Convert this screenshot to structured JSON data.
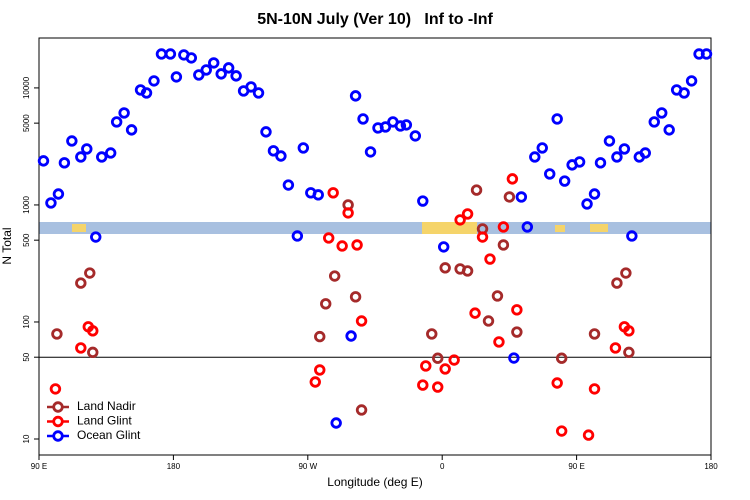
{
  "chart_data": {
    "type": "scatter",
    "title": "5N-10N July (Ver 10)   Inf to -Inf",
    "xlabel": "Longitude (deg E)",
    "ylabel": "N Total",
    "log_y": true,
    "xlim": [
      90,
      540
    ],
    "ylim": [
      7.3,
      26700
    ],
    "xticks": [
      {
        "value": 90,
        "label": "90 E"
      },
      180,
      {
        "value": 270,
        "label": "90 W"
      },
      {
        "value": 360,
        "label": "0"
      },
      {
        "value": 450,
        "label": "90 E"
      },
      {
        "value": 540,
        "label": "180"
      }
    ],
    "yticks": [
      10,
      50,
      100,
      500,
      1000,
      5000,
      10000
    ],
    "hline": 50,
    "legend": "lower left",
    "series": [
      {
        "name": "Land Nadir",
        "color": "#a52a2a",
        "x": [
          102,
          118,
          124,
          126,
          278,
          282,
          288,
          297,
          302,
          306,
          353,
          357,
          362,
          372,
          377,
          383,
          387,
          391,
          397,
          401,
          405,
          410,
          440,
          462,
          477,
          483,
          485
        ],
        "values": [
          79,
          215,
          262,
          55,
          75,
          143,
          247,
          1000,
          164,
          17.7,
          79,
          49,
          290,
          284,
          273,
          1340,
          624,
          102,
          167,
          455,
          1170,
          82,
          49,
          79,
          215,
          262,
          55
        ]
      },
      {
        "name": "Land Glint",
        "color": "#ff0000",
        "x": [
          101,
          118,
          123,
          126,
          275,
          278,
          284,
          287,
          293,
          297,
          303,
          306,
          347,
          349,
          357,
          362,
          368,
          372,
          377,
          382,
          387,
          392,
          398,
          401,
          407,
          410,
          437,
          440,
          458,
          462,
          476,
          482,
          485
        ],
        "values": [
          26.8,
          60,
          91,
          84,
          30.7,
          38.9,
          522,
          1270,
          446,
          855,
          455,
          102,
          28.9,
          42.1,
          27.8,
          39.7,
          47.3,
          745,
          838,
          119,
          532,
          345,
          67.5,
          649,
          1670,
          127,
          30.1,
          11.7,
          10.8,
          26.8,
          60,
          91,
          84
        ]
      },
      {
        "name": "Ocean Glint",
        "color": "#0000ff",
        "x": [
          93,
          98,
          103,
          107,
          112,
          118,
          122,
          128,
          132,
          138,
          142,
          147,
          152,
          158,
          162,
          167,
          172,
          178,
          182,
          187,
          192,
          197,
          202,
          207,
          212,
          217,
          222,
          227,
          232,
          237,
          242,
          247,
          252,
          257,
          263,
          267,
          272,
          277,
          289,
          299,
          302,
          307,
          312,
          317,
          322,
          327,
          332,
          336,
          342,
          347,
          361,
          408,
          413,
          417,
          422,
          427,
          432,
          437,
          442,
          447,
          452,
          457,
          462,
          466,
          472,
          477,
          482,
          487,
          492,
          496,
          502,
          507,
          512,
          517,
          522,
          527,
          532,
          537
        ],
        "values": [
          2380,
          1040,
          1240,
          2290,
          3520,
          2570,
          3010,
          532,
          2570,
          2780,
          5120,
          6110,
          4380,
          9610,
          9060,
          11480,
          19500,
          19500,
          12420,
          19150,
          18050,
          12910,
          14250,
          16360,
          13180,
          14830,
          12670,
          9420,
          10200,
          9060,
          4210,
          2900,
          2620,
          1480,
          543,
          3070,
          1270,
          1220,
          13.7,
          75.9,
          8550,
          5430,
          2840,
          4550,
          4640,
          5120,
          4730,
          4830,
          3890,
          1080,
          438,
          49.2,
          1170,
          649,
          2570,
          3070,
          1840,
          5430,
          1600,
          2200,
          2330,
          1020,
          1240,
          2290,
          3520,
          2570,
          3010,
          543,
          2570,
          2780,
          5120,
          6110,
          4380,
          9610,
          9060,
          11480,
          19500,
          19500
        ]
      }
    ]
  }
}
